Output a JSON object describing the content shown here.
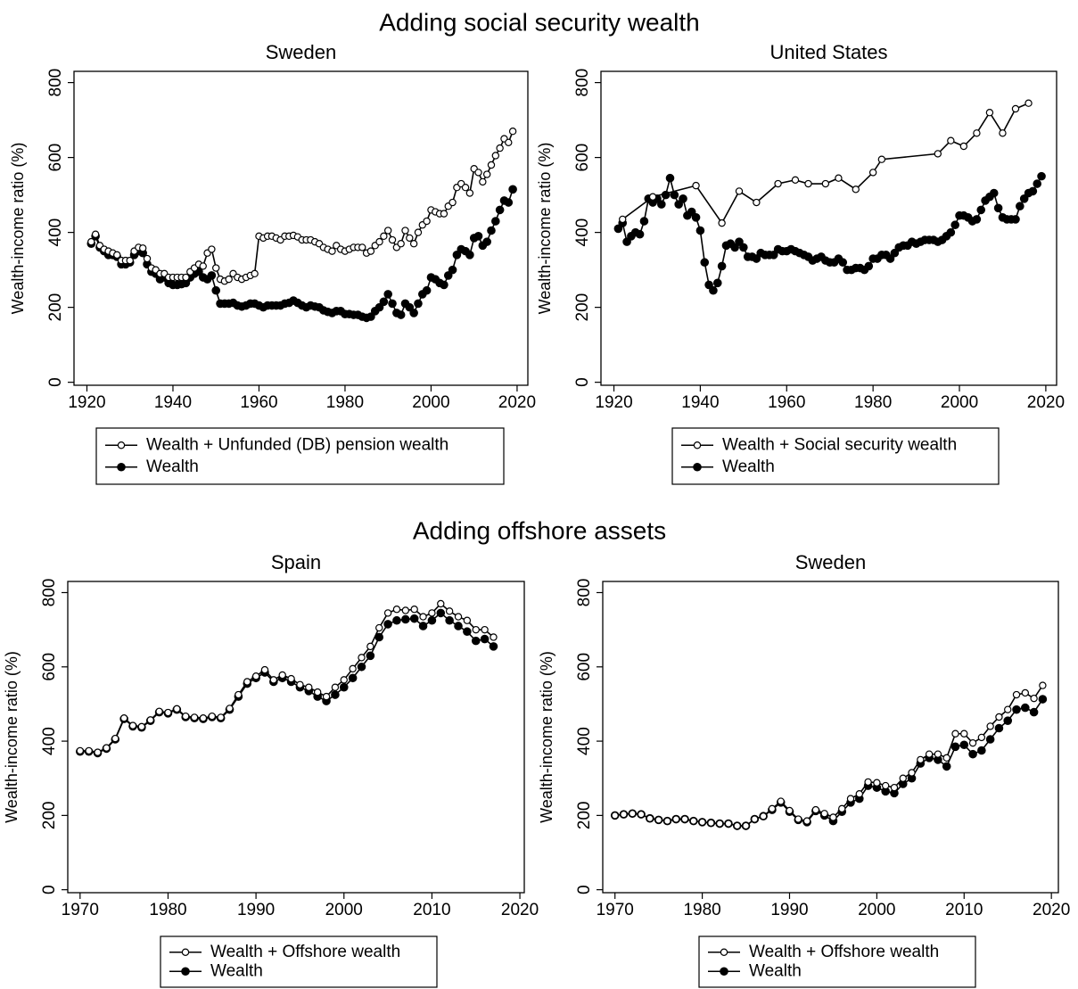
{
  "sections": [
    "Adding social security wealth",
    "Adding offshore assets"
  ],
  "chart_data": [
    {
      "type": "line",
      "title": "Sweden",
      "ylabel": "Wealth-income ratio (%)",
      "xlim": [
        1917,
        2022.5
      ],
      "ylim": [
        -8,
        830
      ],
      "xticks": [
        1920,
        1940,
        1960,
        1980,
        2000,
        2020
      ],
      "yticks": [
        0,
        200,
        400,
        600,
        800
      ],
      "x": [
        1921,
        1922,
        1923,
        1924,
        1925,
        1926,
        1927,
        1928,
        1929,
        1930,
        1931,
        1932,
        1933,
        1934,
        1935,
        1936,
        1937,
        1938,
        1939,
        1940,
        1941,
        1942,
        1943,
        1944,
        1945,
        1946,
        1947,
        1948,
        1949,
        1950,
        1951,
        1952,
        1953,
        1954,
        1955,
        1956,
        1957,
        1958,
        1959,
        1960,
        1961,
        1962,
        1963,
        1964,
        1965,
        1966,
        1967,
        1968,
        1969,
        1970,
        1971,
        1972,
        1973,
        1974,
        1975,
        1976,
        1977,
        1978,
        1979,
        1980,
        1981,
        1982,
        1983,
        1984,
        1985,
        1986,
        1987,
        1988,
        1989,
        1990,
        1991,
        1992,
        1993,
        1994,
        1995,
        1996,
        1997,
        1998,
        1999,
        2000,
        2001,
        2002,
        2003,
        2004,
        2005,
        2006,
        2007,
        2008,
        2009,
        2010,
        2011,
        2012,
        2013,
        2014,
        2015,
        2016,
        2017,
        2018,
        2019
      ],
      "series": [
        {
          "name": "Wealth + Unfunded (DB) pension wealth",
          "color": "#000000",
          "marker_fill": "#ffffff",
          "values": [
            375,
            395,
            365,
            355,
            350,
            345,
            340,
            325,
            325,
            325,
            350,
            360,
            358,
            330,
            305,
            300,
            290,
            290,
            280,
            280,
            280,
            280,
            280,
            295,
            305,
            315,
            310,
            345,
            355,
            305,
            275,
            270,
            275,
            290,
            280,
            275,
            280,
            285,
            290,
            390,
            385,
            390,
            390,
            385,
            380,
            390,
            390,
            392,
            388,
            380,
            380,
            380,
            375,
            370,
            360,
            355,
            350,
            365,
            355,
            350,
            355,
            360,
            360,
            360,
            345,
            350,
            365,
            375,
            390,
            405,
            380,
            360,
            370,
            405,
            385,
            370,
            400,
            420,
            430,
            460,
            455,
            450,
            450,
            470,
            480,
            520,
            530,
            520,
            505,
            570,
            560,
            535,
            555,
            580,
            605,
            625,
            650,
            640,
            670
          ]
        },
        {
          "name": "Wealth",
          "color": "#000000",
          "marker_fill": "#000000",
          "values": [
            370,
            390,
            360,
            350,
            340,
            340,
            335,
            315,
            315,
            320,
            340,
            350,
            345,
            315,
            295,
            290,
            275,
            280,
            265,
            260,
            260,
            262,
            265,
            280,
            290,
            295,
            280,
            275,
            285,
            245,
            210,
            210,
            210,
            212,
            205,
            202,
            205,
            210,
            210,
            205,
            200,
            205,
            205,
            205,
            205,
            210,
            212,
            218,
            212,
            205,
            200,
            205,
            202,
            200,
            192,
            188,
            185,
            190,
            190,
            182,
            182,
            180,
            180,
            175,
            172,
            175,
            190,
            200,
            215,
            235,
            210,
            185,
            180,
            210,
            200,
            185,
            210,
            235,
            245,
            280,
            275,
            265,
            260,
            285,
            300,
            340,
            355,
            350,
            340,
            385,
            390,
            365,
            375,
            405,
            430,
            460,
            485,
            480,
            515
          ]
        }
      ]
    },
    {
      "type": "line",
      "title": "United States",
      "ylabel": "Wealth-income ratio (%)",
      "xlim": [
        1917,
        2022.5
      ],
      "ylim": [
        -8,
        830
      ],
      "xticks": [
        1920,
        1940,
        1960,
        1980,
        2000,
        2020
      ],
      "yticks": [
        0,
        200,
        400,
        600,
        800
      ],
      "series": [
        {
          "name": "Wealth + Social security wealth",
          "color": "#000000",
          "marker_fill": "#ffffff",
          "x": [
            1922,
            1929,
            1939,
            1945,
            1949,
            1953,
            1958,
            1962,
            1965,
            1969,
            1972,
            1976,
            1980,
            1982,
            1995,
            1998,
            2001,
            2004,
            2007,
            2010,
            2013,
            2016
          ],
          "values": [
            435,
            495,
            525,
            425,
            510,
            480,
            530,
            540,
            530,
            530,
            545,
            515,
            560,
            595,
            610,
            645,
            630,
            665,
            720,
            665,
            730,
            745
          ]
        },
        {
          "name": "Wealth",
          "color": "#000000",
          "marker_fill": "#000000",
          "x": [
            1921,
            1922,
            1923,
            1924,
            1925,
            1926,
            1927,
            1928,
            1929,
            1930,
            1931,
            1932,
            1933,
            1934,
            1935,
            1936,
            1937,
            1938,
            1939,
            1940,
            1941,
            1942,
            1943,
            1944,
            1945,
            1946,
            1947,
            1948,
            1949,
            1950,
            1951,
            1952,
            1953,
            1954,
            1955,
            1956,
            1957,
            1958,
            1959,
            1960,
            1961,
            1962,
            1963,
            1964,
            1965,
            1966,
            1967,
            1968,
            1969,
            1970,
            1971,
            1972,
            1973,
            1974,
            1975,
            1976,
            1977,
            1978,
            1979,
            1980,
            1981,
            1982,
            1983,
            1984,
            1985,
            1986,
            1987,
            1988,
            1989,
            1990,
            1991,
            1992,
            1993,
            1994,
            1995,
            1996,
            1997,
            1998,
            1999,
            2000,
            2001,
            2002,
            2003,
            2004,
            2005,
            2006,
            2007,
            2008,
            2009,
            2010,
            2011,
            2012,
            2013,
            2014,
            2015,
            2016,
            2017,
            2018,
            2019
          ],
          "values": [
            410,
            425,
            375,
            390,
            400,
            395,
            430,
            490,
            480,
            490,
            475,
            500,
            545,
            500,
            475,
            490,
            445,
            455,
            440,
            405,
            320,
            260,
            245,
            265,
            310,
            365,
            370,
            360,
            375,
            360,
            335,
            335,
            330,
            345,
            340,
            340,
            340,
            355,
            350,
            350,
            355,
            350,
            345,
            340,
            335,
            325,
            330,
            335,
            325,
            320,
            320,
            330,
            320,
            300,
            300,
            305,
            305,
            300,
            310,
            330,
            330,
            340,
            340,
            330,
            345,
            360,
            365,
            365,
            375,
            370,
            375,
            380,
            380,
            380,
            375,
            380,
            390,
            400,
            420,
            445,
            445,
            440,
            430,
            435,
            460,
            485,
            495,
            505,
            465,
            440,
            435,
            435,
            435,
            470,
            490,
            505,
            510,
            530,
            550
          ]
        }
      ]
    },
    {
      "type": "line",
      "title": "Spain",
      "ylabel": "Wealth-income ratio (%)",
      "xlim": [
        1968.6,
        2020.5
      ],
      "ylim": [
        -8,
        830
      ],
      "xticks": [
        1970,
        1980,
        1990,
        2000,
        2010,
        2020
      ],
      "yticks": [
        0,
        200,
        400,
        600,
        800
      ],
      "x": [
        1970,
        1971,
        1972,
        1973,
        1974,
        1975,
        1976,
        1977,
        1978,
        1979,
        1980,
        1981,
        1982,
        1983,
        1984,
        1985,
        1986,
        1987,
        1988,
        1989,
        1990,
        1991,
        1992,
        1993,
        1994,
        1995,
        1996,
        1997,
        1998,
        1999,
        2000,
        2001,
        2002,
        2003,
        2004,
        2005,
        2006,
        2007,
        2008,
        2009,
        2010,
        2011,
        2012,
        2013,
        2014,
        2015,
        2016,
        2017
      ],
      "series": [
        {
          "name": "Wealth + Offshore wealth",
          "color": "#000000",
          "marker_fill": "#ffffff",
          "values": [
            374,
            374,
            370,
            382,
            407,
            462,
            442,
            439,
            457,
            480,
            477,
            487,
            467,
            464,
            462,
            467,
            464,
            488,
            525,
            560,
            575,
            592,
            565,
            578,
            568,
            552,
            545,
            532,
            520,
            545,
            565,
            595,
            625,
            655,
            705,
            745,
            755,
            752,
            755,
            735,
            745,
            770,
            750,
            735,
            725,
            700,
            700,
            680
          ]
        },
        {
          "name": "Wealth",
          "color": "#000000",
          "marker_fill": "#000000",
          "values": [
            372,
            372,
            368,
            380,
            405,
            460,
            440,
            437,
            455,
            478,
            475,
            485,
            465,
            462,
            460,
            465,
            462,
            485,
            520,
            555,
            570,
            585,
            560,
            570,
            560,
            545,
            535,
            520,
            508,
            525,
            545,
            570,
            600,
            630,
            680,
            715,
            725,
            728,
            730,
            710,
            725,
            745,
            725,
            710,
            695,
            670,
            675,
            655
          ]
        }
      ]
    },
    {
      "type": "line",
      "title": "Sweden",
      "ylabel": "Wealth-income ratio (%)",
      "xlim": [
        1968.6,
        2020.8
      ],
      "ylim": [
        -8,
        830
      ],
      "xticks": [
        1970,
        1980,
        1990,
        2000,
        2010,
        2020
      ],
      "yticks": [
        0,
        200,
        400,
        600,
        800
      ],
      "x": [
        1970,
        1971,
        1972,
        1973,
        1974,
        1975,
        1976,
        1977,
        1978,
        1979,
        1980,
        1981,
        1982,
        1983,
        1984,
        1985,
        1986,
        1987,
        1988,
        1989,
        1990,
        1991,
        1992,
        1993,
        1994,
        1995,
        1996,
        1997,
        1998,
        1999,
        2000,
        2001,
        2002,
        2003,
        2004,
        2005,
        2006,
        2007,
        2008,
        2009,
        2010,
        2011,
        2012,
        2013,
        2014,
        2015,
        2016,
        2017,
        2018,
        2019
      ],
      "series": [
        {
          "name": "Wealth + Offshore wealth",
          "color": "#000000",
          "marker_fill": "#ffffff",
          "values": [
            200,
            203,
            205,
            203,
            192,
            188,
            185,
            190,
            190,
            185,
            182,
            180,
            178,
            178,
            172,
            172,
            190,
            198,
            218,
            238,
            213,
            190,
            185,
            215,
            205,
            195,
            218,
            245,
            258,
            290,
            288,
            280,
            275,
            300,
            315,
            350,
            365,
            365,
            355,
            420,
            420,
            395,
            410,
            440,
            465,
            485,
            525,
            530,
            515,
            550
          ]
        },
        {
          "name": "Wealth",
          "color": "#000000",
          "marker_fill": "#000000",
          "values": [
            200,
            203,
            205,
            203,
            192,
            188,
            185,
            190,
            190,
            185,
            182,
            180,
            178,
            178,
            172,
            172,
            190,
            198,
            215,
            235,
            210,
            188,
            182,
            212,
            200,
            185,
            210,
            235,
            245,
            280,
            275,
            265,
            260,
            285,
            300,
            340,
            355,
            350,
            332,
            385,
            390,
            365,
            375,
            405,
            435,
            455,
            485,
            490,
            478,
            513
          ]
        }
      ]
    }
  ]
}
